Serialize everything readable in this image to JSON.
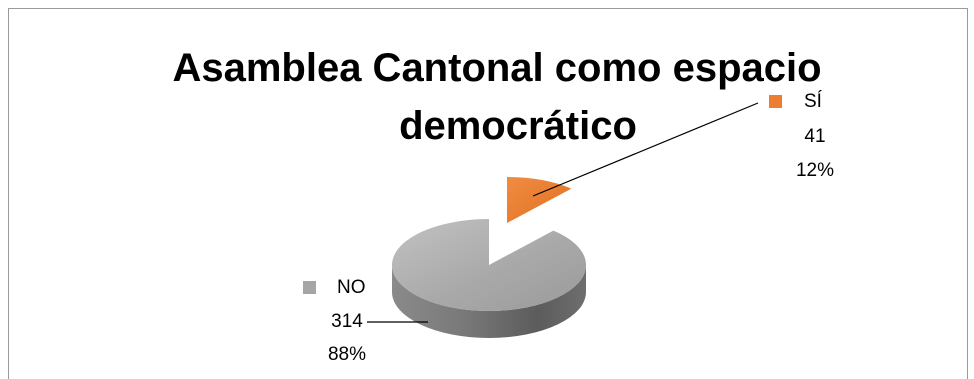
{
  "chart_data": {
    "type": "pie",
    "style": "3d-exploded",
    "title_lines": [
      "Asamblea Cantonal como espacio",
      "democrático"
    ],
    "slices": [
      {
        "label": "SÍ",
        "value": 41,
        "percent": "12%",
        "color": "#ED7D31"
      },
      {
        "label": "NO",
        "value": 314,
        "percent": "88%",
        "color": "#A5A5A5"
      }
    ]
  }
}
